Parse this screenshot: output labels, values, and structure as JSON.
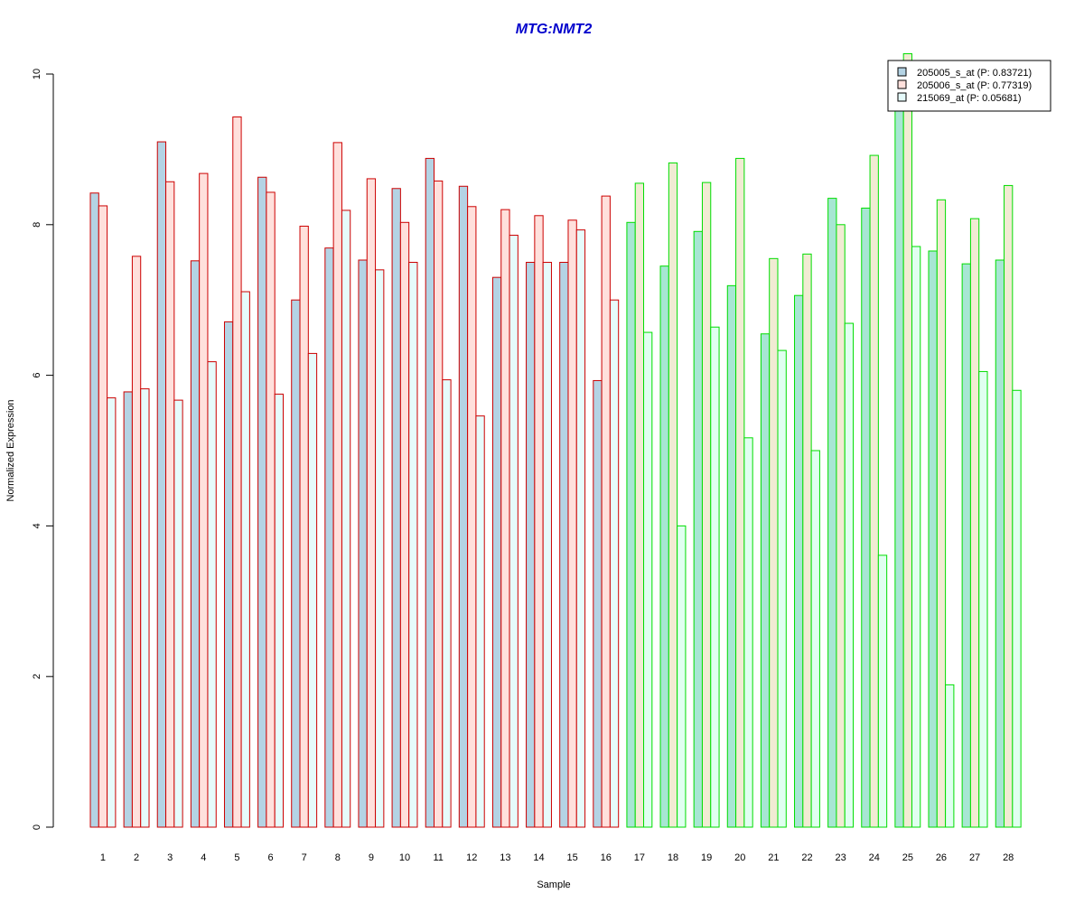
{
  "colors": {
    "title": "#0000CC",
    "group_a_border": "#CC0000",
    "group_b_border": "#00DD00",
    "series_fills_group_a": [
      "#B4D3E4",
      "#FFE0DC",
      "#E6FBFB"
    ],
    "series_fills_group_b": [
      "#A7E6D3",
      "#F1EBD3",
      "#E0FFF0"
    ],
    "legend_fills": [
      "#B4D3E4",
      "#FFE0DC",
      "#E6FBFB"
    ]
  },
  "chart_data": {
    "type": "bar",
    "title": "MTG:NMT2",
    "xlabel": "Sample",
    "ylabel": "Normalized Expression",
    "ylim": [
      0,
      10
    ],
    "yticks": [
      0,
      2,
      4,
      6,
      8,
      10
    ],
    "grid": false,
    "legend_position": "top-right",
    "categories": [
      "1",
      "2",
      "3",
      "4",
      "5",
      "6",
      "7",
      "8",
      "9",
      "10",
      "11",
      "12",
      "13",
      "14",
      "15",
      "16",
      "17",
      "18",
      "19",
      "20",
      "21",
      "22",
      "23",
      "24",
      "25",
      "26",
      "27",
      "28"
    ],
    "group_a_count": 16,
    "series": [
      {
        "name": "205005_s_at (P: 0.83721)",
        "values": [
          8.42,
          5.78,
          9.1,
          7.52,
          6.71,
          8.63,
          7.0,
          7.69,
          7.53,
          8.48,
          8.88,
          8.51,
          7.3,
          7.5,
          7.5,
          5.93,
          8.03,
          7.45,
          7.91,
          7.19,
          6.55,
          7.06,
          8.35,
          8.22,
          9.6,
          7.65,
          7.48,
          7.53
        ]
      },
      {
        "name": "205006_s_at (P: 0.77319)",
        "values": [
          8.25,
          7.58,
          8.57,
          8.68,
          9.43,
          8.43,
          7.98,
          9.09,
          8.61,
          8.03,
          8.58,
          8.24,
          8.2,
          8.12,
          8.06,
          8.38,
          8.55,
          8.82,
          8.56,
          8.88,
          7.55,
          7.61,
          8.0,
          8.92,
          10.27,
          8.33,
          8.08,
          8.52
        ]
      },
      {
        "name": "215069_at (P: 0.05681)",
        "values": [
          5.7,
          5.82,
          5.67,
          6.18,
          7.11,
          5.75,
          6.29,
          8.19,
          7.4,
          7.5,
          5.94,
          5.46,
          7.86,
          7.5,
          7.93,
          7.0,
          6.57,
          4.0,
          6.64,
          5.17,
          6.33,
          5.0,
          6.69,
          3.61,
          7.71,
          1.89,
          6.05,
          5.8
        ]
      }
    ]
  }
}
